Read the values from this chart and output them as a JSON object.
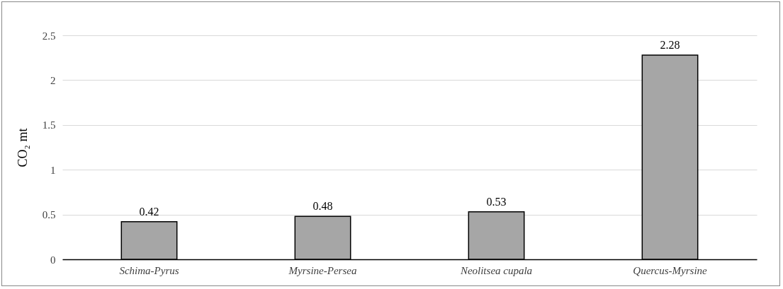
{
  "chart_data": {
    "type": "bar",
    "ylabel": "CO₂ mt",
    "categories": [
      "Schima-Pyrus",
      "Myrsine-Persea",
      "Neolitsea cupala",
      "Quercus-Myrsine"
    ],
    "values": [
      0.42,
      0.48,
      0.53,
      2.28
    ],
    "color": "#a6a6a6",
    "ylim": [
      0,
      2.5
    ],
    "yticks": [
      0,
      0.5,
      1,
      1.5,
      2,
      2.5
    ],
    "grid": "y",
    "data_labels": true
  }
}
